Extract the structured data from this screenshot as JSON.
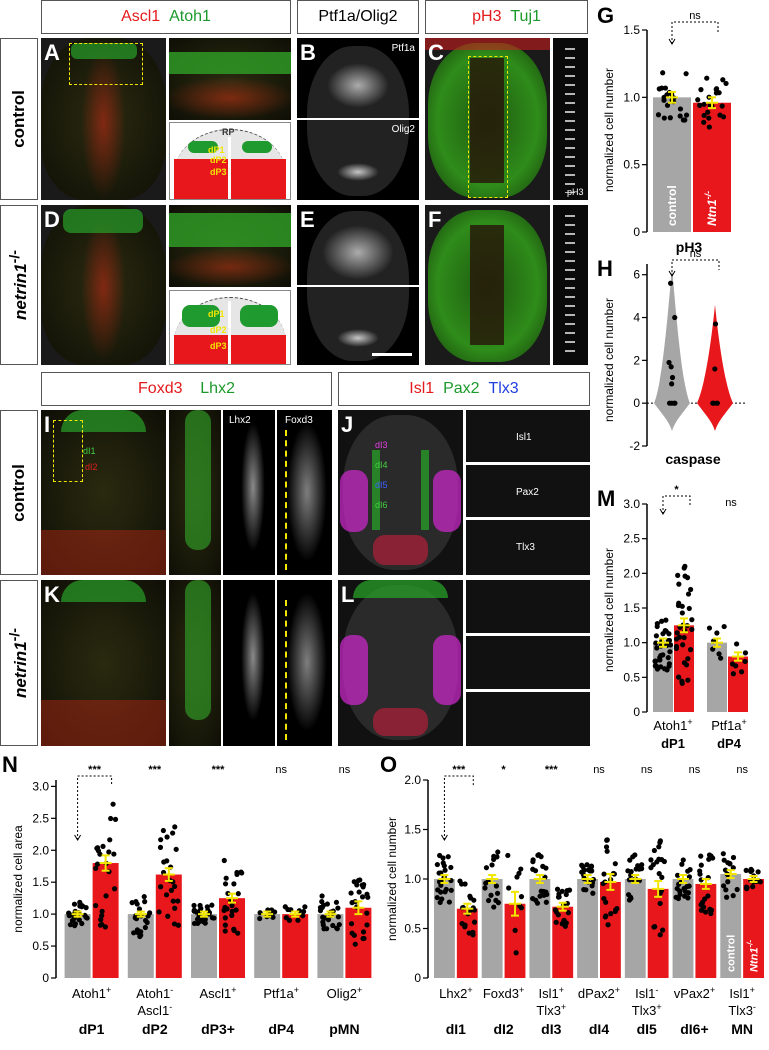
{
  "headers": {
    "ascl1_atoh1": {
      "part1": "Ascl1",
      "part2": "Atoh1"
    },
    "ptf1a_olig2": "Ptf1a/Olig2",
    "ph3_tuj1": {
      "part1": "pH3",
      "part2": "Tuj1"
    },
    "foxd3_lhx2": {
      "part1": "Foxd3",
      "part2": "Lhx2"
    },
    "isl1_pax2_tlx3": {
      "part1": "Isl1",
      "part2": "Pax2",
      "part3": "Tlx3"
    }
  },
  "row_labels": {
    "control": "control",
    "mutant": "netrin1",
    "mutant_sup": "-/-"
  },
  "panel_letters": [
    "A",
    "B",
    "C",
    "D",
    "E",
    "F",
    "G",
    "H",
    "I",
    "J",
    "K",
    "L",
    "M",
    "N",
    "O"
  ],
  "image_labels": {
    "ptf1a": "Ptf1a",
    "olig2": "Olig2",
    "ph3": "pH3",
    "lhx2": "Lhx2",
    "foxd3": "Foxd3",
    "isl1": "Isl1",
    "pax2": "Pax2",
    "tlx3": "Tlx3",
    "dp1": "dP1",
    "dp2": "dP2",
    "dp3": "dP3",
    "rp": "RP",
    "di1": "dI1",
    "di2": "dI2",
    "di3": "dI3",
    "di4": "dI4",
    "di5": "dI5",
    "di6": "dI6"
  },
  "charts": {
    "G": {
      "ylabel": "normalized cell number",
      "xlabel": "pH3",
      "yticks": [
        "0",
        "0.5",
        "1.0",
        "1.5"
      ],
      "sig": "ns",
      "bar_labels": [
        "control",
        "Ntn1",
        "-/-"
      ]
    },
    "H": {
      "ylabel": "normalized cell number",
      "xlabel": "caspase",
      "yticks": [
        "-2",
        "0",
        "2",
        "4",
        "6"
      ],
      "sig": "ns"
    },
    "M": {
      "ylabel": "normalized cell number",
      "yticks": [
        "0",
        "0.5",
        "1.0",
        "1.5",
        "2.0",
        "2.5",
        "3.0"
      ],
      "sig": [
        "*",
        "ns"
      ],
      "cat1": "Atoh1",
      "cat1_sup": "+",
      "cat2": "Ptf1a",
      "cat2_sup": "+",
      "grp1": "dP1",
      "grp2": "dP4"
    },
    "N": {
      "ylabel": "normalized cell area",
      "yticks": [
        "0",
        "0.5",
        "1.0",
        "1.5",
        "2.0",
        "2.5",
        "3.0"
      ],
      "sig": [
        "***",
        "***",
        "***",
        "ns",
        "ns"
      ],
      "cats": [
        {
          "l1": "Atoh1",
          "s1": "+",
          "l2": "",
          "s2": "",
          "grp": "dP1"
        },
        {
          "l1": "Atoh1",
          "s1": "-",
          "l2": "Ascl1",
          "s2": "-",
          "grp": "dP2"
        },
        {
          "l1": "Ascl1",
          "s1": "+",
          "l2": "",
          "s2": "",
          "grp": "dP3+"
        },
        {
          "l1": "Ptf1a",
          "s1": "+",
          "l2": "",
          "s2": "",
          "grp": "dP4"
        },
        {
          "l1": "Olig2",
          "s1": "+",
          "l2": "",
          "s2": "",
          "grp": "pMN"
        }
      ]
    },
    "O": {
      "ylabel": "normalized cell number",
      "yticks": [
        "0",
        "0.5",
        "1.0",
        "1.5",
        "2.0"
      ],
      "sig": [
        "***",
        "*",
        "***",
        "ns",
        "ns",
        "ns",
        "ns"
      ],
      "cats": [
        {
          "l1": "Lhx2",
          "s1": "+",
          "l2": "",
          "s2": "",
          "grp": "dI1"
        },
        {
          "l1": "Foxd3",
          "s1": "+",
          "l2": "",
          "s2": "",
          "grp": "dI2"
        },
        {
          "l1": "Isl1",
          "s1": "+",
          "l2": "Tlx3",
          "s2": "+",
          "grp": "dI3"
        },
        {
          "l1": "dPax2",
          "s1": "+",
          "l2": "",
          "s2": "",
          "grp": "dI4"
        },
        {
          "l1": "Isl1",
          "s1": "-",
          "l2": "Tlx3",
          "s2": "+",
          "grp": "dI5"
        },
        {
          "l1": "vPax2",
          "s1": "+",
          "l2": "",
          "s2": "",
          "grp": "dI6+"
        },
        {
          "l1": "Isl1",
          "s1": "+",
          "l2": "Tlx3",
          "s2": "-",
          "grp": "MN"
        }
      ],
      "bar_labels": [
        "control",
        "Ntn1",
        "-/-"
      ]
    }
  },
  "chart_data": [
    {
      "type": "bar",
      "id": "G",
      "categories": [
        "control",
        "Ntn1-/-"
      ],
      "values": [
        1.0,
        0.96
      ],
      "ylim": [
        0,
        1.5
      ],
      "xlabel": "pH3",
      "ylabel": "normalized cell number"
    },
    {
      "type": "violin",
      "id": "H",
      "categories": [
        "control",
        "Ntn1-/-"
      ],
      "values": [
        0.5,
        0.3
      ],
      "ylim": [
        -2,
        6.5
      ],
      "xlabel": "caspase",
      "ylabel": "normalized cell number"
    },
    {
      "type": "bar",
      "id": "M",
      "categories": [
        "Atoh1+ control",
        "Atoh1+ Ntn1-/-",
        "Ptf1a+ control",
        "Ptf1a+ Ntn1-/-"
      ],
      "values": [
        1.0,
        1.25,
        1.0,
        0.8
      ],
      "ylim": [
        0,
        3.0
      ],
      "ylabel": "normalized cell number"
    },
    {
      "type": "bar",
      "id": "N",
      "categories": [
        "dP1",
        "dP2",
        "dP3+",
        "dP4",
        "pMN"
      ],
      "series": [
        {
          "name": "control",
          "values": [
            1.0,
            1.0,
            1.0,
            1.0,
            1.0
          ]
        },
        {
          "name": "Ntn1-/-",
          "values": [
            1.8,
            1.62,
            1.25,
            1.0,
            1.1
          ]
        }
      ],
      "ylim": [
        0,
        3.1
      ],
      "ylabel": "normalized cell area"
    },
    {
      "type": "bar",
      "id": "O",
      "categories": [
        "dI1",
        "dI2",
        "dI3",
        "dI4",
        "dI5",
        "dI6+",
        "MN"
      ],
      "series": [
        {
          "name": "control",
          "values": [
            1.0,
            1.0,
            1.0,
            1.0,
            1.0,
            1.0,
            1.05
          ]
        },
        {
          "name": "Ntn1-/-",
          "values": [
            0.7,
            0.75,
            0.72,
            0.97,
            0.9,
            0.95,
            1.0
          ]
        }
      ],
      "ylim": [
        0,
        2.0
      ],
      "ylabel": "normalized cell number"
    }
  ],
  "colors": {
    "control": "#a6a6a6",
    "mutant": "#e8171c",
    "error": "#f2e600",
    "red": "#e41a1c",
    "green": "#1a9a2a",
    "blue": "#1f3fe0"
  }
}
